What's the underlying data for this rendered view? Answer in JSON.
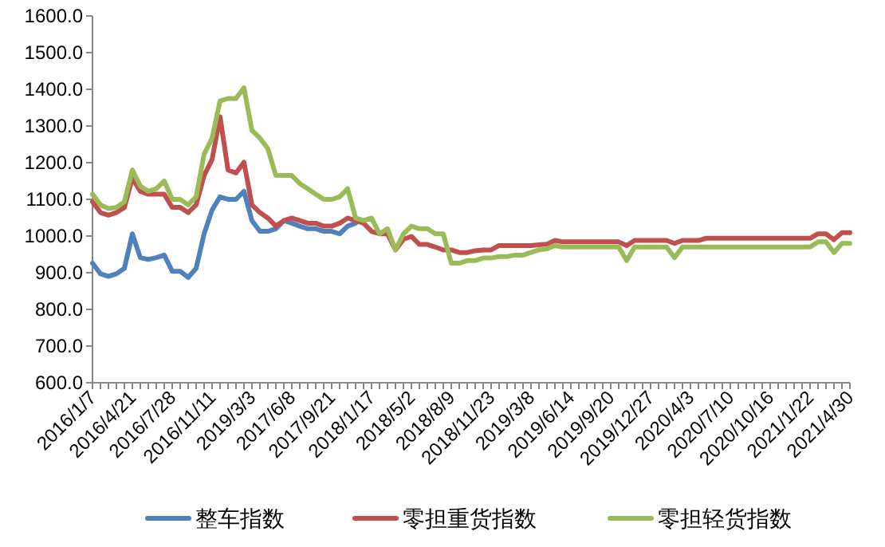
{
  "chart_data": {
    "type": "line",
    "categories": [
      "2016/1/7",
      null,
      null,
      null,
      null,
      "2016/4/21",
      null,
      null,
      null,
      null,
      "2016/7/28",
      null,
      null,
      null,
      null,
      "2016/11/11",
      null,
      null,
      null,
      null,
      "2019/3/3",
      null,
      null,
      null,
      null,
      "2017/6/8",
      null,
      null,
      null,
      null,
      "2017/9/21",
      null,
      null,
      null,
      null,
      "2018/1/17",
      null,
      null,
      null,
      null,
      "2018/5/2",
      null,
      null,
      null,
      null,
      "2018/8/9",
      null,
      null,
      null,
      null,
      "2018/11/23",
      null,
      null,
      null,
      null,
      "2019/3/8",
      null,
      null,
      null,
      null,
      "2019/6/14",
      null,
      null,
      null,
      null,
      "2019/9/20",
      null,
      null,
      null,
      null,
      "2019/12/27",
      null,
      null,
      null,
      null,
      "2020/4/3",
      null,
      null,
      null,
      null,
      "2020/7/10",
      null,
      null,
      null,
      null,
      "2020/10/16",
      null,
      null,
      null,
      null,
      "2021/1/22",
      null,
      null,
      null,
      null,
      "2021/4/30"
    ],
    "series": [
      {
        "name": "整车指数",
        "color": "#4f81bd",
        "values": [
          926,
          897,
          890,
          897,
          912,
          1006,
          941,
          936,
          941,
          948,
          904,
          904,
          887,
          912,
          1006,
          1071,
          1107,
          1100,
          1100,
          1122,
          1042,
          1013,
          1013,
          1020,
          1042,
          1035,
          1027,
          1020,
          1020,
          1013,
          1013,
          1006,
          1027,
          1035,
          null,
          null,
          null,
          null,
          null,
          null,
          null,
          null,
          null,
          null,
          null,
          null,
          null,
          null,
          null,
          null,
          null,
          null,
          null,
          null,
          null,
          null,
          null,
          null,
          null,
          null,
          null,
          null,
          null,
          null,
          null,
          null,
          null,
          null,
          null,
          null,
          null,
          null,
          null,
          null,
          null,
          null,
          null,
          null,
          null,
          null,
          null,
          null,
          null,
          null,
          null,
          null,
          null,
          null,
          null,
          null,
          null,
          null,
          null,
          null,
          null,
          null
        ]
      },
      {
        "name": "零担重货指数",
        "color": "#c0504d",
        "values": [
          1093,
          1064,
          1057,
          1064,
          1078,
          1158,
          1122,
          1114,
          1114,
          1114,
          1078,
          1078,
          1064,
          1085,
          1165,
          1209,
          1325,
          1180,
          1172,
          1201,
          1085,
          1064,
          1049,
          1027,
          1042,
          1049,
          1042,
          1035,
          1035,
          1027,
          1027,
          1035,
          1049,
          1042,
          1035,
          1013,
          1006,
          1006,
          962,
          991,
          999,
          977,
          977,
          970,
          962,
          962,
          955,
          955,
          960,
          962,
          962,
          974,
          974,
          974,
          974,
          974,
          976,
          978,
          988,
          984,
          984,
          984,
          984,
          984,
          984,
          984,
          984,
          974,
          988,
          988,
          988,
          988,
          988,
          980,
          988,
          988,
          988,
          994,
          994,
          994,
          994,
          994,
          994,
          994,
          994,
          994,
          994,
          994,
          994,
          994,
          994,
          1006,
          1006,
          990,
          1009,
          1009
        ]
      },
      {
        "name": "零担轻货指数",
        "color": "#9bbb59",
        "values": [
          1114,
          1085,
          1075,
          1078,
          1093,
          1180,
          1136,
          1122,
          1129,
          1150,
          1100,
          1100,
          1085,
          1107,
          1223,
          1267,
          1368,
          1375,
          1375,
          1404,
          1288,
          1267,
          1238,
          1165,
          1165,
          1165,
          1143,
          1129,
          1114,
          1100,
          1100,
          1107,
          1129,
          1049,
          1042,
          1049,
          1006,
          1020,
          962,
          1006,
          1027,
          1020,
          1020,
          1006,
          1006,
          926,
          926,
          933,
          933,
          940,
          940,
          944,
          944,
          948,
          948,
          955,
          962,
          965,
          974,
          970,
          970,
          970,
          970,
          970,
          970,
          970,
          970,
          933,
          970,
          970,
          970,
          970,
          970,
          941,
          970,
          970,
          970,
          970,
          970,
          970,
          970,
          970,
          970,
          970,
          970,
          970,
          970,
          970,
          970,
          970,
          970,
          984,
          984,
          955,
          980,
          980
        ]
      }
    ],
    "ylim": [
      600,
      1600
    ],
    "yticks": [
      {
        "value": 600,
        "label": "600.0"
      },
      {
        "value": 700,
        "label": "700.0"
      },
      {
        "value": 800,
        "label": "800.0"
      },
      {
        "value": 900,
        "label": "900.0"
      },
      {
        "value": 1000,
        "label": "1000.0"
      },
      {
        "value": 1100,
        "label": "1100.0"
      },
      {
        "value": 1200,
        "label": "1200.0"
      },
      {
        "value": 1300,
        "label": "1300.0"
      },
      {
        "value": 1400,
        "label": "1400.0"
      },
      {
        "value": 1500,
        "label": "1500.0"
      },
      {
        "value": 1600,
        "label": "1600.0"
      }
    ],
    "grid": false,
    "legend": "bottom",
    "marker": "none"
  }
}
